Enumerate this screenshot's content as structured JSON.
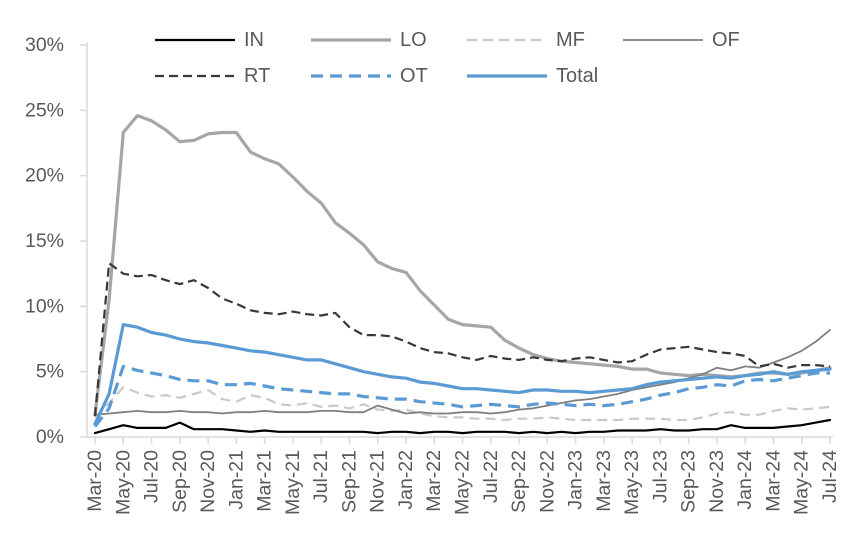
{
  "theme": {
    "background": "#ffffff",
    "axis_color": "#d9d9d9",
    "tick_text_color": "#595959",
    "accent_blue": "#5b9bd5"
  },
  "chart_data": {
    "type": "line",
    "title": "",
    "xlabel": "",
    "ylabel": "",
    "ylim": [
      0,
      30
    ],
    "y_tick_step": 5,
    "y_tick_labels": [
      "0%",
      "5%",
      "10%",
      "15%",
      "20%",
      "25%",
      "30%"
    ],
    "grid": false,
    "legend_position": "top",
    "legend_rows": [
      [
        "IN",
        "LO",
        "MF",
        "OF"
      ],
      [
        "RT",
        "OT",
        "Total"
      ]
    ],
    "x_tick_every": 2,
    "x_tick_labels": [
      "Mar-20",
      "May-20",
      "Jul-20",
      "Sep-20",
      "Nov-20",
      "Jan-21",
      "Mar-21",
      "May-21",
      "Jul-21",
      "Sep-21",
      "Nov-21",
      "Jan-22",
      "Mar-22",
      "May-22",
      "Jul-22",
      "Sep-22",
      "Nov-22",
      "Jan-23",
      "Mar-23",
      "May-23",
      "Jul-23",
      "Sep-23",
      "Nov-23",
      "Jan-24",
      "Mar-24",
      "May-24",
      "Jul-24"
    ],
    "x": [
      "Mar-20",
      "Apr-20",
      "May-20",
      "Jun-20",
      "Jul-20",
      "Aug-20",
      "Sep-20",
      "Oct-20",
      "Nov-20",
      "Dec-20",
      "Jan-21",
      "Feb-21",
      "Mar-21",
      "Apr-21",
      "May-21",
      "Jun-21",
      "Jul-21",
      "Aug-21",
      "Sep-21",
      "Oct-21",
      "Nov-21",
      "Dec-21",
      "Jan-22",
      "Feb-22",
      "Mar-22",
      "Apr-22",
      "May-22",
      "Jun-22",
      "Jul-22",
      "Aug-22",
      "Sep-22",
      "Oct-22",
      "Nov-22",
      "Dec-22",
      "Jan-23",
      "Feb-23",
      "Mar-23",
      "Apr-23",
      "May-23",
      "Jun-23",
      "Jul-23",
      "Aug-23",
      "Sep-23",
      "Oct-23",
      "Nov-23",
      "Dec-23",
      "Jan-24",
      "Feb-24",
      "Mar-24",
      "Apr-24",
      "May-24",
      "Jun-24",
      "Jul-24"
    ],
    "series": [
      {
        "name": "IN",
        "color": "#000000",
        "dash": "solid",
        "width": 2.2,
        "values": [
          0.3,
          0.6,
          0.9,
          0.7,
          0.7,
          0.7,
          1.1,
          0.6,
          0.6,
          0.6,
          0.5,
          0.4,
          0.5,
          0.4,
          0.4,
          0.4,
          0.4,
          0.4,
          0.4,
          0.4,
          0.3,
          0.4,
          0.4,
          0.3,
          0.4,
          0.4,
          0.3,
          0.4,
          0.4,
          0.4,
          0.3,
          0.4,
          0.3,
          0.4,
          0.3,
          0.4,
          0.4,
          0.5,
          0.5,
          0.5,
          0.6,
          0.5,
          0.5,
          0.6,
          0.6,
          0.9,
          0.7,
          0.7,
          0.7,
          0.8,
          0.9,
          1.1,
          1.3
        ]
      },
      {
        "name": "LO",
        "color": "#a6a6a6",
        "dash": "solid",
        "width": 3.2,
        "values": [
          1.7,
          10.5,
          23.3,
          24.6,
          24.2,
          23.5,
          22.6,
          22.7,
          23.2,
          23.3,
          23.3,
          21.8,
          21.3,
          20.9,
          19.9,
          18.8,
          17.9,
          16.4,
          15.6,
          14.7,
          13.4,
          12.9,
          12.6,
          11.2,
          10.1,
          9.0,
          8.6,
          8.5,
          8.4,
          7.4,
          6.8,
          6.3,
          6.0,
          5.8,
          5.7,
          5.6,
          5.5,
          5.4,
          5.2,
          5.2,
          4.9,
          4.8,
          4.7,
          4.8,
          4.7,
          4.6,
          4.7,
          4.9,
          4.9,
          4.8,
          4.9,
          5.1,
          5.3
        ]
      },
      {
        "name": "MF",
        "color": "#c9c9c9",
        "dash": "10 6",
        "width": 2.2,
        "values": [
          1.5,
          2.6,
          3.8,
          3.4,
          3.1,
          3.2,
          3.0,
          3.3,
          3.6,
          2.9,
          2.7,
          3.2,
          3.0,
          2.5,
          2.4,
          2.6,
          2.3,
          2.4,
          2.2,
          2.5,
          2.1,
          2.0,
          2.1,
          1.8,
          1.6,
          1.5,
          1.5,
          1.4,
          1.4,
          1.3,
          1.4,
          1.4,
          1.5,
          1.4,
          1.3,
          1.3,
          1.3,
          1.3,
          1.4,
          1.4,
          1.4,
          1.3,
          1.3,
          1.5,
          1.8,
          1.9,
          1.7,
          1.7,
          2.0,
          2.2,
          2.1,
          2.2,
          2.3
        ]
      },
      {
        "name": "OF",
        "color": "#7f7f7f",
        "dash": "solid",
        "width": 1.8,
        "values": [
          1.7,
          1.8,
          1.9,
          2.0,
          1.9,
          1.9,
          2.0,
          1.9,
          1.9,
          1.8,
          1.9,
          1.9,
          2.0,
          1.9,
          1.9,
          1.9,
          2.0,
          2.0,
          1.9,
          1.9,
          2.4,
          2.1,
          1.8,
          1.9,
          1.8,
          1.8,
          1.9,
          1.9,
          1.8,
          1.9,
          2.1,
          2.2,
          2.4,
          2.6,
          2.8,
          2.9,
          3.1,
          3.3,
          3.6,
          3.8,
          4.0,
          4.2,
          4.5,
          4.8,
          5.3,
          5.1,
          5.4,
          5.3,
          5.7,
          6.1,
          6.6,
          7.3,
          8.2
        ]
      },
      {
        "name": "RT",
        "color": "#383838",
        "dash": "9 5",
        "width": 2.2,
        "values": [
          1.6,
          13.3,
          12.5,
          12.3,
          12.4,
          12.0,
          11.7,
          12.0,
          11.4,
          10.6,
          10.2,
          9.7,
          9.5,
          9.4,
          9.6,
          9.4,
          9.3,
          9.5,
          8.4,
          7.8,
          7.8,
          7.7,
          7.3,
          6.8,
          6.5,
          6.4,
          6.1,
          5.9,
          6.2,
          6.0,
          5.9,
          6.1,
          5.9,
          5.8,
          6.0,
          6.1,
          5.9,
          5.7,
          5.8,
          6.3,
          6.7,
          6.8,
          6.9,
          6.7,
          6.5,
          6.4,
          6.2,
          5.4,
          5.6,
          5.3,
          5.5,
          5.5,
          5.4
        ]
      },
      {
        "name": "OT",
        "color": "#5b9bd5",
        "dash": "12 7",
        "width": 3.2,
        "values": [
          0.8,
          2.2,
          5.4,
          5.1,
          4.9,
          4.7,
          4.4,
          4.3,
          4.3,
          4.0,
          4.0,
          4.1,
          3.9,
          3.7,
          3.6,
          3.5,
          3.4,
          3.3,
          3.3,
          3.1,
          3.0,
          2.9,
          2.9,
          2.7,
          2.6,
          2.5,
          2.3,
          2.4,
          2.5,
          2.4,
          2.3,
          2.5,
          2.6,
          2.5,
          2.4,
          2.5,
          2.4,
          2.5,
          2.7,
          2.9,
          3.2,
          3.4,
          3.7,
          3.8,
          4.0,
          3.9,
          4.3,
          4.4,
          4.3,
          4.5,
          4.7,
          4.9,
          4.9
        ]
      },
      {
        "name": "Total",
        "color": "#5b9bd5",
        "dash": "solid",
        "width": 3.2,
        "values": [
          1.0,
          3.3,
          8.6,
          8.4,
          8.0,
          7.8,
          7.5,
          7.3,
          7.2,
          7.0,
          6.8,
          6.6,
          6.5,
          6.3,
          6.1,
          5.9,
          5.9,
          5.6,
          5.3,
          5.0,
          4.8,
          4.6,
          4.5,
          4.2,
          4.1,
          3.9,
          3.7,
          3.7,
          3.6,
          3.5,
          3.4,
          3.6,
          3.6,
          3.5,
          3.5,
          3.4,
          3.5,
          3.6,
          3.7,
          4.0,
          4.2,
          4.3,
          4.4,
          4.5,
          4.6,
          4.5,
          4.7,
          4.8,
          5.0,
          4.8,
          5.0,
          5.1,
          5.2
        ]
      }
    ]
  }
}
